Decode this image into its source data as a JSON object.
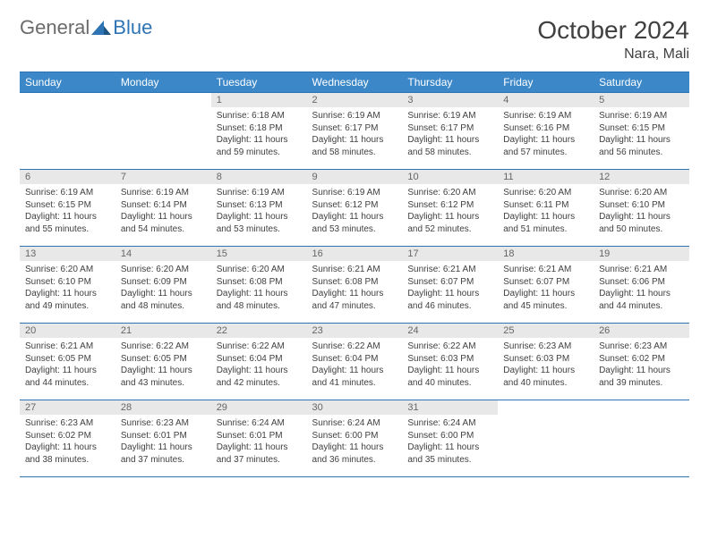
{
  "logo": {
    "part1": "General",
    "part2": "Blue"
  },
  "title": "October 2024",
  "location": "Nara, Mali",
  "header_bg": "#3b87c8",
  "header_border": "#2e74b5",
  "daynum_bg": "#e8e8e8",
  "weekdays": [
    "Sunday",
    "Monday",
    "Tuesday",
    "Wednesday",
    "Thursday",
    "Friday",
    "Saturday"
  ],
  "weeks": [
    [
      {
        "n": "",
        "sr": "",
        "ss": "",
        "dl": ""
      },
      {
        "n": "",
        "sr": "",
        "ss": "",
        "dl": ""
      },
      {
        "n": "1",
        "sr": "Sunrise: 6:18 AM",
        "ss": "Sunset: 6:18 PM",
        "dl": "Daylight: 11 hours and 59 minutes."
      },
      {
        "n": "2",
        "sr": "Sunrise: 6:19 AM",
        "ss": "Sunset: 6:17 PM",
        "dl": "Daylight: 11 hours and 58 minutes."
      },
      {
        "n": "3",
        "sr": "Sunrise: 6:19 AM",
        "ss": "Sunset: 6:17 PM",
        "dl": "Daylight: 11 hours and 58 minutes."
      },
      {
        "n": "4",
        "sr": "Sunrise: 6:19 AM",
        "ss": "Sunset: 6:16 PM",
        "dl": "Daylight: 11 hours and 57 minutes."
      },
      {
        "n": "5",
        "sr": "Sunrise: 6:19 AM",
        "ss": "Sunset: 6:15 PM",
        "dl": "Daylight: 11 hours and 56 minutes."
      }
    ],
    [
      {
        "n": "6",
        "sr": "Sunrise: 6:19 AM",
        "ss": "Sunset: 6:15 PM",
        "dl": "Daylight: 11 hours and 55 minutes."
      },
      {
        "n": "7",
        "sr": "Sunrise: 6:19 AM",
        "ss": "Sunset: 6:14 PM",
        "dl": "Daylight: 11 hours and 54 minutes."
      },
      {
        "n": "8",
        "sr": "Sunrise: 6:19 AM",
        "ss": "Sunset: 6:13 PM",
        "dl": "Daylight: 11 hours and 53 minutes."
      },
      {
        "n": "9",
        "sr": "Sunrise: 6:19 AM",
        "ss": "Sunset: 6:12 PM",
        "dl": "Daylight: 11 hours and 53 minutes."
      },
      {
        "n": "10",
        "sr": "Sunrise: 6:20 AM",
        "ss": "Sunset: 6:12 PM",
        "dl": "Daylight: 11 hours and 52 minutes."
      },
      {
        "n": "11",
        "sr": "Sunrise: 6:20 AM",
        "ss": "Sunset: 6:11 PM",
        "dl": "Daylight: 11 hours and 51 minutes."
      },
      {
        "n": "12",
        "sr": "Sunrise: 6:20 AM",
        "ss": "Sunset: 6:10 PM",
        "dl": "Daylight: 11 hours and 50 minutes."
      }
    ],
    [
      {
        "n": "13",
        "sr": "Sunrise: 6:20 AM",
        "ss": "Sunset: 6:10 PM",
        "dl": "Daylight: 11 hours and 49 minutes."
      },
      {
        "n": "14",
        "sr": "Sunrise: 6:20 AM",
        "ss": "Sunset: 6:09 PM",
        "dl": "Daylight: 11 hours and 48 minutes."
      },
      {
        "n": "15",
        "sr": "Sunrise: 6:20 AM",
        "ss": "Sunset: 6:08 PM",
        "dl": "Daylight: 11 hours and 48 minutes."
      },
      {
        "n": "16",
        "sr": "Sunrise: 6:21 AM",
        "ss": "Sunset: 6:08 PM",
        "dl": "Daylight: 11 hours and 47 minutes."
      },
      {
        "n": "17",
        "sr": "Sunrise: 6:21 AM",
        "ss": "Sunset: 6:07 PM",
        "dl": "Daylight: 11 hours and 46 minutes."
      },
      {
        "n": "18",
        "sr": "Sunrise: 6:21 AM",
        "ss": "Sunset: 6:07 PM",
        "dl": "Daylight: 11 hours and 45 minutes."
      },
      {
        "n": "19",
        "sr": "Sunrise: 6:21 AM",
        "ss": "Sunset: 6:06 PM",
        "dl": "Daylight: 11 hours and 44 minutes."
      }
    ],
    [
      {
        "n": "20",
        "sr": "Sunrise: 6:21 AM",
        "ss": "Sunset: 6:05 PM",
        "dl": "Daylight: 11 hours and 44 minutes."
      },
      {
        "n": "21",
        "sr": "Sunrise: 6:22 AM",
        "ss": "Sunset: 6:05 PM",
        "dl": "Daylight: 11 hours and 43 minutes."
      },
      {
        "n": "22",
        "sr": "Sunrise: 6:22 AM",
        "ss": "Sunset: 6:04 PM",
        "dl": "Daylight: 11 hours and 42 minutes."
      },
      {
        "n": "23",
        "sr": "Sunrise: 6:22 AM",
        "ss": "Sunset: 6:04 PM",
        "dl": "Daylight: 11 hours and 41 minutes."
      },
      {
        "n": "24",
        "sr": "Sunrise: 6:22 AM",
        "ss": "Sunset: 6:03 PM",
        "dl": "Daylight: 11 hours and 40 minutes."
      },
      {
        "n": "25",
        "sr": "Sunrise: 6:23 AM",
        "ss": "Sunset: 6:03 PM",
        "dl": "Daylight: 11 hours and 40 minutes."
      },
      {
        "n": "26",
        "sr": "Sunrise: 6:23 AM",
        "ss": "Sunset: 6:02 PM",
        "dl": "Daylight: 11 hours and 39 minutes."
      }
    ],
    [
      {
        "n": "27",
        "sr": "Sunrise: 6:23 AM",
        "ss": "Sunset: 6:02 PM",
        "dl": "Daylight: 11 hours and 38 minutes."
      },
      {
        "n": "28",
        "sr": "Sunrise: 6:23 AM",
        "ss": "Sunset: 6:01 PM",
        "dl": "Daylight: 11 hours and 37 minutes."
      },
      {
        "n": "29",
        "sr": "Sunrise: 6:24 AM",
        "ss": "Sunset: 6:01 PM",
        "dl": "Daylight: 11 hours and 37 minutes."
      },
      {
        "n": "30",
        "sr": "Sunrise: 6:24 AM",
        "ss": "Sunset: 6:00 PM",
        "dl": "Daylight: 11 hours and 36 minutes."
      },
      {
        "n": "31",
        "sr": "Sunrise: 6:24 AM",
        "ss": "Sunset: 6:00 PM",
        "dl": "Daylight: 11 hours and 35 minutes."
      },
      {
        "n": "",
        "sr": "",
        "ss": "",
        "dl": ""
      },
      {
        "n": "",
        "sr": "",
        "ss": "",
        "dl": ""
      }
    ]
  ]
}
